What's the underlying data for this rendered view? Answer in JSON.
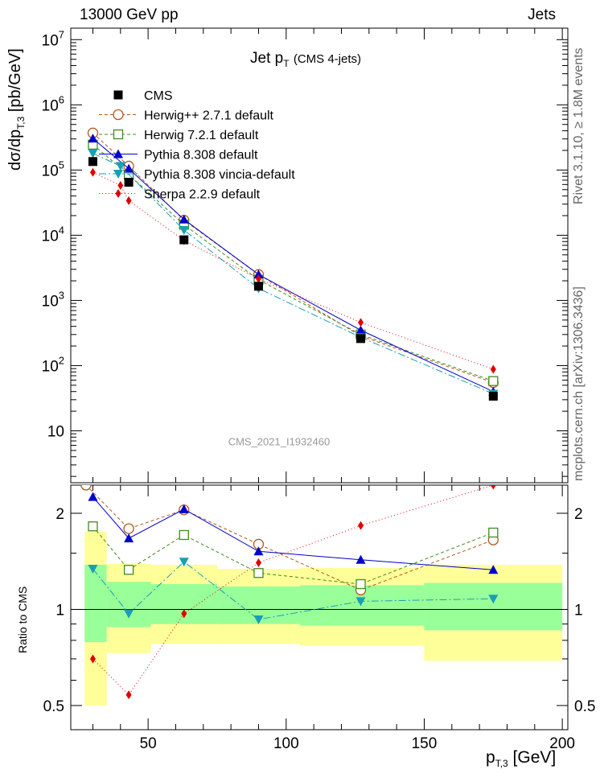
{
  "header": {
    "energy_label": "13000 GeV pp",
    "process_label": "Jets"
  },
  "side_labels": {
    "rivet": "Rivet 3.1.10, ≥ 1.8M events",
    "mcplots": "mcplots.cern.ch [arXiv:1306.3436]"
  },
  "chart_data": [
    {
      "type": "line",
      "title": "Jet p_T (CMS 4-jets)",
      "title_main": "Jet p",
      "title_sub": "T",
      "title_extra": "(CMS 4-jets)",
      "analysis_label": "CMS_2021_I1932460",
      "ylabel_main": "dσ/dp",
      "ylabel_sub": "T,3",
      "ylabel_unit": "[pb/GeV]",
      "yscale": "log",
      "ylim": [
        1.6,
        15000000
      ],
      "xlim": [
        22,
        202
      ],
      "yticks": [
        {
          "v": 10,
          "m": "10",
          "e": ""
        },
        {
          "v": 100,
          "m": "10",
          "e": "2"
        },
        {
          "v": 1000,
          "m": "10",
          "e": "3"
        },
        {
          "v": 10000,
          "m": "10",
          "e": "4"
        },
        {
          "v": 100000,
          "m": "10",
          "e": "5"
        },
        {
          "v": 1000000,
          "m": "10",
          "e": "6"
        },
        {
          "v": 10000000,
          "m": "10",
          "e": "7"
        }
      ],
      "legend_position": "top-left",
      "series": [
        {
          "name": "CMS",
          "color": "#000000",
          "marker": "square",
          "dash": "none",
          "x": [
            30,
            43,
            63,
            90,
            127,
            175
          ],
          "y": [
            135000,
            65000,
            8500,
            1650,
            260,
            34
          ]
        },
        {
          "name": "Herwig++ 2.7.1 default",
          "color": "#b2571c",
          "marker": "circle-open",
          "dash": "4,3",
          "x": [
            30,
            43,
            63,
            90,
            127,
            175
          ],
          "y": [
            370000,
            115000,
            17000,
            2500,
            285,
            55
          ]
        },
        {
          "name": "Herwig 7.2.1 default",
          "color": "#3f8a1f",
          "marker": "square-open",
          "dash": "4,3",
          "x": [
            30,
            43,
            63,
            90,
            127,
            175
          ],
          "y": [
            245000,
            85000,
            14500,
            2080,
            300,
            58
          ]
        },
        {
          "name": "Pythia 8.308 default",
          "color": "#0000cc",
          "marker": "triangle-up",
          "dash": "none",
          "x": [
            30,
            43,
            63,
            90,
            127,
            175
          ],
          "y": [
            305000,
            105000,
            17500,
            2500,
            350,
            40
          ]
        },
        {
          "name": "Pythia 8.308 vincia-default",
          "color": "#1a9eb5",
          "marker": "triangle-down",
          "dash": "9,3,2,3",
          "x": [
            30,
            40,
            63,
            90,
            127,
            175
          ],
          "y": [
            180000,
            115000,
            12000,
            1530,
            272,
            37
          ]
        },
        {
          "name": "Sherpa 2.2.9 default",
          "color": "#e00000",
          "marker": "diamond",
          "dash": "1,3",
          "x": [
            30,
            40,
            43,
            63,
            90,
            127,
            175
          ],
          "y": [
            92000,
            58000,
            34000,
            8300,
            2150,
            460,
            88
          ]
        }
      ]
    },
    {
      "type": "line",
      "ylabel": "Ratio to CMS",
      "xlabel_main": "p",
      "xlabel_sub": "T,3",
      "xlabel_unit": "[GeV]",
      "yscale": "log",
      "ylim": [
        0.42,
        2.45
      ],
      "xlim": [
        22,
        202
      ],
      "xticks": [
        50,
        100,
        150,
        200
      ],
      "yticks": [
        0.5,
        1,
        2
      ],
      "bands": [
        {
          "x0": 27,
          "x1": 35,
          "green": [
            0.79,
            1.38
          ],
          "yellow": [
            0.5,
            1.75
          ]
        },
        {
          "x0": 35,
          "x1": 51,
          "green": [
            0.88,
            1.22
          ],
          "yellow": [
            0.73,
            1.39
          ]
        },
        {
          "x0": 51,
          "x1": 75,
          "green": [
            0.9,
            1.2
          ],
          "yellow": [
            0.78,
            1.38
          ]
        },
        {
          "x0": 75,
          "x1": 105,
          "green": [
            0.9,
            1.18
          ],
          "yellow": [
            0.78,
            1.34
          ]
        },
        {
          "x0": 105,
          "x1": 150,
          "green": [
            0.89,
            1.19
          ],
          "yellow": [
            0.77,
            1.35
          ]
        },
        {
          "x0": 150,
          "x1": 200,
          "green": [
            0.86,
            1.21
          ],
          "yellow": [
            0.69,
            1.38
          ]
        }
      ],
      "series": [
        {
          "name": "Herwig++ 2.7.1 default",
          "color": "#b2571c",
          "marker": "circle-open",
          "dash": "4,3",
          "x": [
            27.5,
            43,
            63,
            90,
            127,
            175
          ],
          "y": [
            2.45,
            1.79,
            2.05,
            1.6,
            1.15,
            1.65
          ]
        },
        {
          "name": "Herwig 7.2.1 default",
          "color": "#3f8a1f",
          "marker": "square-open",
          "dash": "4,3",
          "x": [
            30,
            43,
            63,
            90,
            127,
            175
          ],
          "y": [
            1.82,
            1.33,
            1.71,
            1.3,
            1.2,
            1.74
          ]
        },
        {
          "name": "Pythia 8.308 default",
          "color": "#0000cc",
          "marker": "triangle-up",
          "dash": "none",
          "x": [
            30,
            43,
            63,
            90,
            127,
            175
          ],
          "y": [
            2.25,
            1.67,
            2.06,
            1.52,
            1.43,
            1.33
          ]
        },
        {
          "name": "Pythia 8.308 vincia-default",
          "color": "#1a9eb5",
          "marker": "triangle-down",
          "dash": "9,3,2,3",
          "x": [
            30,
            43,
            63,
            90,
            127,
            175
          ],
          "y": [
            1.34,
            0.97,
            1.41,
            0.93,
            1.06,
            1.08
          ]
        },
        {
          "name": "Sherpa 2.2.9 default",
          "color": "#e00000",
          "marker": "diamond",
          "dash": "1,3",
          "x": [
            30,
            43,
            63,
            90,
            127,
            175,
            200
          ],
          "y": [
            0.7,
            0.54,
            0.97,
            1.4,
            1.83,
            2.45,
            2.6
          ]
        }
      ]
    }
  ]
}
